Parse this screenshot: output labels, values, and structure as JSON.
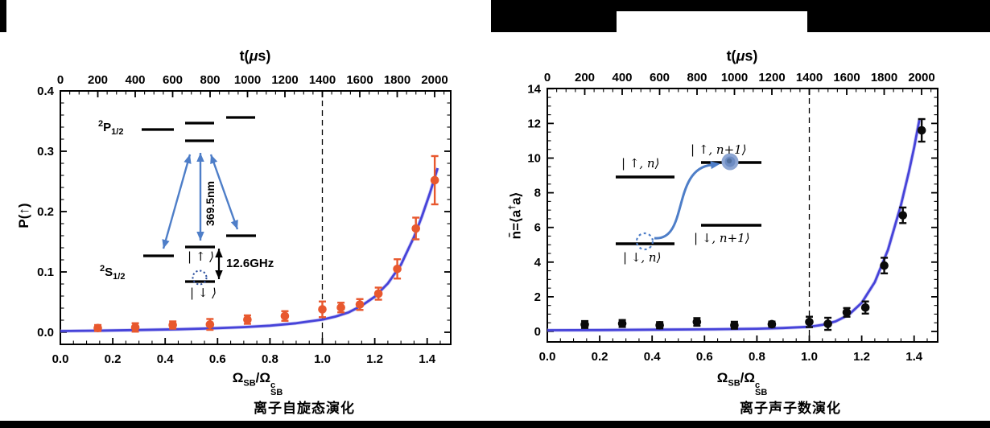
{
  "page": {
    "captions": {
      "left": "离子自旋态演化",
      "right": "离子声子数演化"
    }
  },
  "colors": {
    "point_orange": "#e8582e",
    "point_black": "#0a0a0a",
    "curve_blue": "#4643d9",
    "curve_halo": "#aaa6ec",
    "arrow_blue": "#4e7ec8",
    "dot_circle_blue": "#2c4f9e",
    "ball_outer": "#8da6d3",
    "ball_mid": "#6d8cc3",
    "ball_core": "#53719f",
    "frame_black": "#000000"
  },
  "chart_data": [
    {
      "type": "scatter",
      "caption": "离子自旋态演化",
      "top_axis": {
        "label_parts": {
          "pre": "t(",
          "mu": "μ",
          "post": "s)"
        },
        "ticks": [
          0,
          200,
          400,
          600,
          800,
          1000,
          1200,
          1400,
          1600,
          1800,
          2000
        ],
        "tick_labels": [
          "0",
          "200",
          "400",
          "600",
          "800",
          "1000",
          "1200",
          "1400",
          "1600",
          "1800",
          "2000"
        ],
        "t_critical_us": 1400,
        "minor_step_us": 50
      },
      "x_axis": {
        "min": 0,
        "max": 1.49,
        "ticks": [
          0,
          0.2,
          0.4,
          0.6,
          0.8,
          1.0,
          1.2,
          1.4
        ],
        "tick_labels": [
          "0.0",
          "0.2",
          "0.4",
          "0.6",
          "0.8",
          "1.0",
          "1.2",
          "1.4"
        ],
        "minor_step": 0.05
      },
      "y_axis": {
        "label": "P(↑)",
        "min": -0.02,
        "max": 0.4,
        "ticks": [
          0.0,
          0.1,
          0.2,
          0.3,
          0.4
        ],
        "tick_labels": [
          "0.0",
          "0.1",
          "0.2",
          "0.3",
          "0.4"
        ],
        "minor_step": 0.02
      },
      "dashed_line_x": 1.0,
      "grid": false,
      "legend": "none",
      "xlabel_parts": {
        "o1": "Ω",
        "sub1": "SB",
        "slash": "/",
        "o2": "Ω",
        "sup2": "c",
        "sub2": "SB"
      },
      "series": {
        "points": {
          "name": "measured spin-up probability",
          "t_us": [
            200,
            400,
            600,
            800,
            1000,
            1200,
            1400,
            1500,
            1600,
            1700,
            1800,
            1900,
            2000
          ],
          "x": [
            0.143,
            0.286,
            0.429,
            0.571,
            0.714,
            0.857,
            1.0,
            1.071,
            1.143,
            1.214,
            1.286,
            1.357,
            1.429
          ],
          "y": [
            0.007,
            0.008,
            0.012,
            0.013,
            0.021,
            0.027,
            0.038,
            0.041,
            0.046,
            0.064,
            0.105,
            0.172,
            0.252
          ],
          "yerr": [
            0.005,
            0.007,
            0.006,
            0.009,
            0.007,
            0.008,
            0.013,
            0.008,
            0.009,
            0.01,
            0.016,
            0.018,
            0.04
          ]
        },
        "fit_curve": {
          "name": "theory curve",
          "x": [
            0,
            0.15,
            0.3,
            0.45,
            0.6,
            0.7,
            0.8,
            0.9,
            0.95,
            1.0,
            1.05,
            1.1,
            1.15,
            1.2,
            1.25,
            1.3,
            1.35,
            1.38,
            1.41,
            1.44
          ],
          "y": [
            0.002,
            0.0027,
            0.0037,
            0.005,
            0.0068,
            0.0085,
            0.011,
            0.015,
            0.018,
            0.021,
            0.026,
            0.033,
            0.044,
            0.059,
            0.081,
            0.112,
            0.158,
            0.192,
            0.23,
            0.272
          ]
        }
      },
      "inset": {
        "p": {
          "sup": "2",
          "main": "P",
          "sub": "1/2"
        },
        "s": {
          "sup": "2",
          "main": "S",
          "sub": "1/2"
        },
        "wavelength": "369.5nm",
        "splitting": "12.6GHz",
        "up_ket": "| ↑ ⟩",
        "down_ket": "| ↓ ⟩"
      }
    },
    {
      "type": "scatter",
      "caption": "离子声子数演化",
      "top_axis": {
        "label_parts": {
          "pre": "t(",
          "mu": "μ",
          "post": "s)"
        },
        "ticks": [
          0,
          200,
          400,
          600,
          800,
          1000,
          1200,
          1400,
          1600,
          1800,
          2000
        ],
        "tick_labels": [
          "0",
          "200",
          "400",
          "600",
          "800",
          "1000",
          "1200",
          "1400",
          "1600",
          "1800",
          "2000"
        ],
        "t_critical_us": 1400,
        "minor_step_us": 50
      },
      "x_axis": {
        "min": 0,
        "max": 1.49,
        "ticks": [
          0,
          0.2,
          0.4,
          0.6,
          0.8,
          1.0,
          1.2,
          1.4
        ],
        "tick_labels": [
          "0.0",
          "0.2",
          "0.4",
          "0.6",
          "0.8",
          "1.0",
          "1.2",
          "1.4"
        ],
        "minor_step": 0.05
      },
      "y_axis": {
        "label_parts": {
          "nbar": "n̄",
          "eq": "=⟨a",
          "dagger": "†",
          "tail": "a⟩"
        },
        "min": -0.6,
        "max": 14,
        "ticks": [
          0,
          2,
          4,
          6,
          8,
          10,
          12,
          14
        ],
        "tick_labels": [
          "0",
          "2",
          "4",
          "6",
          "8",
          "10",
          "12",
          "14"
        ],
        "minor_step": 0.5
      },
      "dashed_line_x": 1.0,
      "grid": false,
      "legend": "none",
      "xlabel_parts": {
        "o1": "Ω",
        "sub1": "SB",
        "slash": "/",
        "o2": "Ω",
        "sup2": "c",
        "sub2": "SB"
      },
      "series": {
        "points": {
          "name": "measured mean phonon number",
          "t_us": [
            200,
            400,
            600,
            800,
            1000,
            1200,
            1400,
            1500,
            1600,
            1700,
            1800,
            1900,
            2000
          ],
          "x": [
            0.143,
            0.286,
            0.429,
            0.571,
            0.714,
            0.857,
            1.0,
            1.071,
            1.143,
            1.214,
            1.286,
            1.357,
            1.429
          ],
          "y": [
            0.4,
            0.46,
            0.36,
            0.55,
            0.36,
            0.42,
            0.55,
            0.44,
            1.1,
            1.38,
            3.8,
            6.7,
            11.6
          ],
          "yerr": [
            0.2,
            0.2,
            0.18,
            0.22,
            0.2,
            0.15,
            0.3,
            0.35,
            0.25,
            0.35,
            0.45,
            0.45,
            0.65
          ]
        },
        "fit_curve": {
          "name": "theory curve",
          "x": [
            0,
            0.2,
            0.4,
            0.6,
            0.8,
            0.9,
            1.0,
            1.05,
            1.1,
            1.15,
            1.2,
            1.25,
            1.3,
            1.35,
            1.38,
            1.4,
            1.42
          ],
          "y": [
            0.07,
            0.08,
            0.1,
            0.12,
            0.16,
            0.2,
            0.27,
            0.38,
            0.58,
            0.95,
            1.65,
            2.85,
            4.7,
            7.3,
            9.2,
            10.6,
            12.2
          ]
        }
      },
      "inset": {
        "up_n": "| ↑, n⟩",
        "up_n1": "| ↑, n+1⟩",
        "down_n": "| ↓, n⟩",
        "down_n1": "| ↓, n+1⟩"
      }
    }
  ]
}
